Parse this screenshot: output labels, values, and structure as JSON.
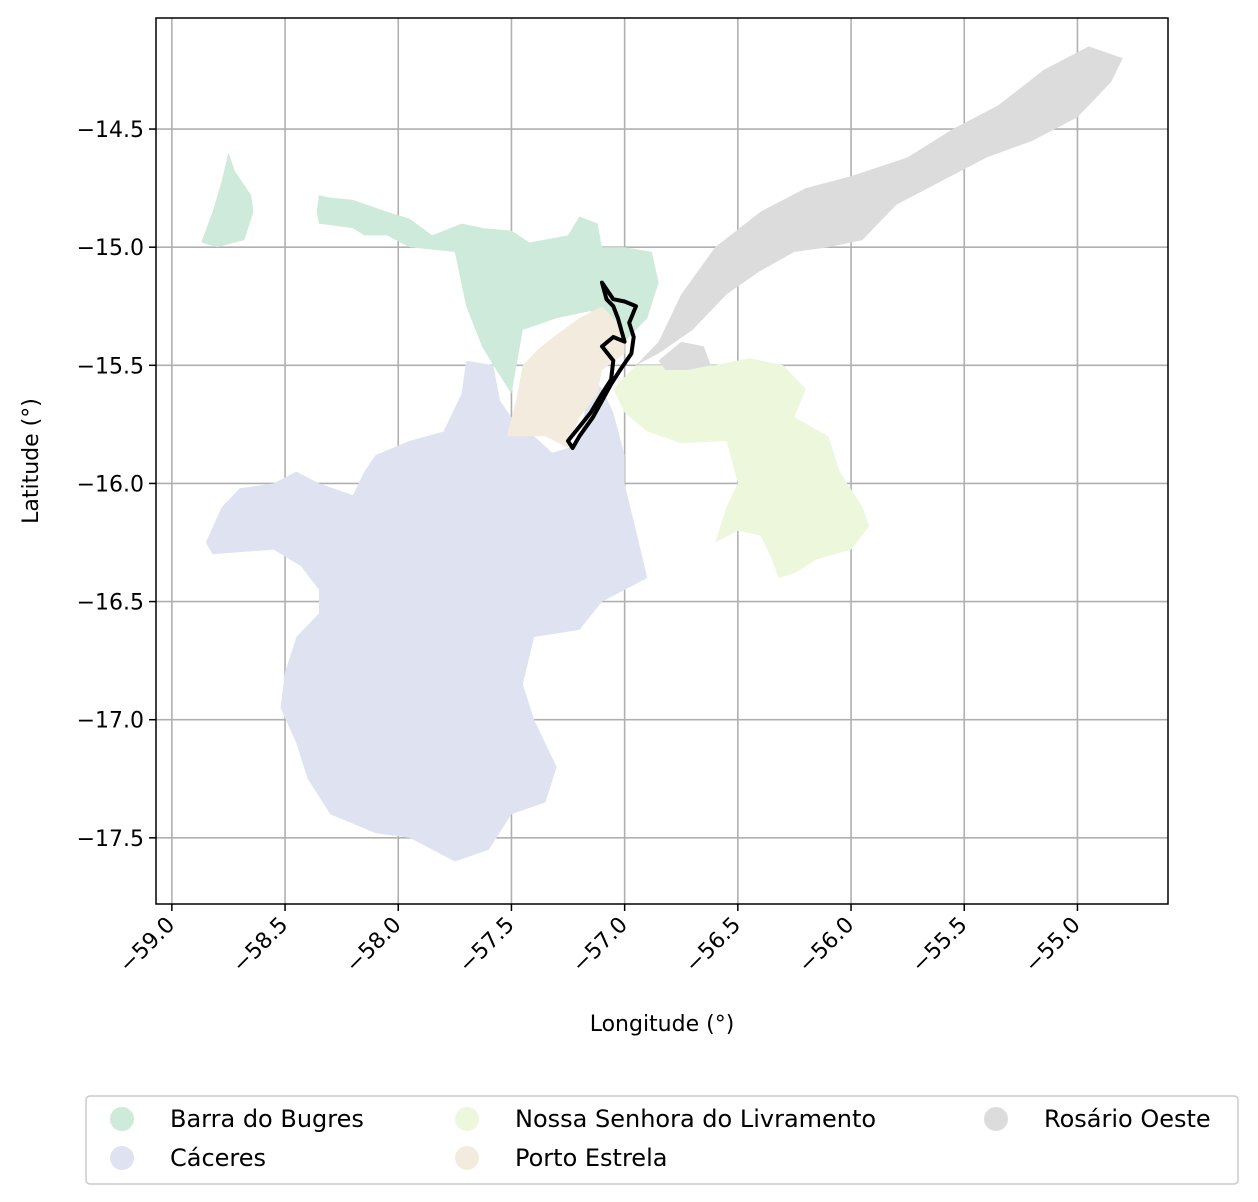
{
  "map": {
    "xlabel": "Longitude (°)",
    "ylabel": "Latitude (°)",
    "xlim": [
      -59.07,
      -54.6
    ],
    "ylim": [
      -17.78,
      -14.03
    ],
    "x_ticks": [
      -59.0,
      -58.5,
      -58.0,
      -57.5,
      -57.0,
      -56.5,
      -56.0,
      -55.5,
      -55.0
    ],
    "x_tick_labels": [
      "−59.0",
      "−58.5",
      "−58.0",
      "−57.5",
      "−57.0",
      "−56.5",
      "−56.0",
      "−55.5",
      "−55.0"
    ],
    "y_ticks": [
      -14.5,
      -15.0,
      -15.5,
      -16.0,
      -16.5,
      -17.0,
      -17.5
    ],
    "y_tick_labels": [
      "−14.5",
      "−15.0",
      "−15.5",
      "−16.0",
      "−16.5",
      "−17.0",
      "−17.5"
    ],
    "grid": true,
    "legend_placement": "bottom, outside plot, 3 columns",
    "legend": [
      {
        "name": "Barra do Bugres",
        "color": "#cdeadb"
      },
      {
        "name": "Cáceres",
        "color": "#dfe3f1"
      },
      {
        "name": "Nossa Senhora do Livramento",
        "color": "#edf7dc"
      },
      {
        "name": "Porto Estrela",
        "color": "#f3ebdd"
      },
      {
        "name": "Rosário Oeste",
        "color": "#dcdcdc"
      }
    ],
    "regions": [
      {
        "name": "Barra do Bugres",
        "color": "#cdeadb",
        "coords": [
          [
            -58.35,
            -14.78
          ],
          [
            -58.3,
            -14.79
          ],
          [
            -58.2,
            -14.8
          ],
          [
            -58.05,
            -14.85
          ],
          [
            -57.95,
            -14.88
          ],
          [
            -57.85,
            -14.95
          ],
          [
            -57.72,
            -14.9
          ],
          [
            -57.62,
            -14.92
          ],
          [
            -57.5,
            -14.93
          ],
          [
            -57.42,
            -14.98
          ],
          [
            -57.25,
            -14.95
          ],
          [
            -57.2,
            -14.87
          ],
          [
            -57.12,
            -14.9
          ],
          [
            -57.1,
            -15.0
          ],
          [
            -57.0,
            -15.0
          ],
          [
            -56.88,
            -15.02
          ],
          [
            -56.85,
            -15.15
          ],
          [
            -56.9,
            -15.3
          ],
          [
            -57.0,
            -15.4
          ],
          [
            -57.15,
            -15.27
          ],
          [
            -57.3,
            -15.3
          ],
          [
            -57.45,
            -15.35
          ],
          [
            -57.5,
            -15.62
          ],
          [
            -57.58,
            -15.5
          ],
          [
            -57.63,
            -15.42
          ],
          [
            -57.7,
            -15.25
          ],
          [
            -57.75,
            -15.02
          ],
          [
            -57.95,
            -15.0
          ],
          [
            -58.05,
            -14.95
          ],
          [
            -58.15,
            -14.95
          ],
          [
            -58.2,
            -14.92
          ],
          [
            -58.35,
            -14.9
          ],
          [
            -58.36,
            -14.85
          ]
        ]
      },
      {
        "name": "Barra do Bugres",
        "color": "#cdeadb",
        "coords": [
          [
            -58.87,
            -14.98
          ],
          [
            -58.82,
            -14.85
          ],
          [
            -58.78,
            -14.72
          ],
          [
            -58.75,
            -14.6
          ],
          [
            -58.72,
            -14.68
          ],
          [
            -58.65,
            -14.78
          ],
          [
            -58.64,
            -14.85
          ],
          [
            -58.68,
            -14.97
          ],
          [
            -58.8,
            -15.0
          ]
        ]
      },
      {
        "name": "Cáceres",
        "color": "#dfe3f1",
        "coords": [
          [
            -57.15,
            -15.55
          ],
          [
            -57.2,
            -15.82
          ],
          [
            -57.25,
            -15.85
          ],
          [
            -57.32,
            -15.87
          ],
          [
            -57.4,
            -15.8
          ],
          [
            -57.5,
            -15.72
          ],
          [
            -57.55,
            -15.65
          ],
          [
            -57.58,
            -15.5
          ],
          [
            -57.7,
            -15.48
          ],
          [
            -57.72,
            -15.62
          ],
          [
            -57.8,
            -15.78
          ],
          [
            -57.95,
            -15.82
          ],
          [
            -58.1,
            -15.88
          ],
          [
            -58.15,
            -15.95
          ],
          [
            -58.2,
            -16.05
          ],
          [
            -58.35,
            -16.0
          ],
          [
            -58.45,
            -15.95
          ],
          [
            -58.55,
            -16.0
          ],
          [
            -58.7,
            -16.02
          ],
          [
            -58.78,
            -16.1
          ],
          [
            -58.85,
            -16.25
          ],
          [
            -58.82,
            -16.3
          ],
          [
            -58.55,
            -16.28
          ],
          [
            -58.43,
            -16.35
          ],
          [
            -58.35,
            -16.45
          ],
          [
            -58.35,
            -16.55
          ],
          [
            -58.45,
            -16.65
          ],
          [
            -58.5,
            -16.8
          ],
          [
            -58.52,
            -16.95
          ],
          [
            -58.45,
            -17.1
          ],
          [
            -58.4,
            -17.25
          ],
          [
            -58.3,
            -17.4
          ],
          [
            -58.1,
            -17.48
          ],
          [
            -57.95,
            -17.5
          ],
          [
            -57.75,
            -17.6
          ],
          [
            -57.6,
            -17.55
          ],
          [
            -57.5,
            -17.4
          ],
          [
            -57.35,
            -17.35
          ],
          [
            -57.3,
            -17.2
          ],
          [
            -57.4,
            -17.0
          ],
          [
            -57.45,
            -16.85
          ],
          [
            -57.4,
            -16.65
          ],
          [
            -57.2,
            -16.62
          ],
          [
            -57.1,
            -16.5
          ],
          [
            -56.9,
            -16.4
          ],
          [
            -56.95,
            -16.2
          ],
          [
            -57.0,
            -16.0
          ],
          [
            -57.0,
            -15.88
          ],
          [
            -57.05,
            -15.7
          ],
          [
            -57.1,
            -15.6
          ]
        ]
      },
      {
        "name": "Nossa Senhora do Livramento",
        "color": "#edf7dc",
        "coords": [
          [
            -57.05,
            -15.6
          ],
          [
            -56.95,
            -15.5
          ],
          [
            -56.6,
            -15.5
          ],
          [
            -56.45,
            -15.47
          ],
          [
            -56.3,
            -15.5
          ],
          [
            -56.2,
            -15.6
          ],
          [
            -56.25,
            -15.72
          ],
          [
            -56.1,
            -15.8
          ],
          [
            -56.05,
            -15.95
          ],
          [
            -55.95,
            -16.1
          ],
          [
            -55.92,
            -16.18
          ],
          [
            -56.0,
            -16.28
          ],
          [
            -56.15,
            -16.32
          ],
          [
            -56.25,
            -16.38
          ],
          [
            -56.32,
            -16.4
          ],
          [
            -56.35,
            -16.32
          ],
          [
            -56.4,
            -16.22
          ],
          [
            -56.5,
            -16.2
          ],
          [
            -56.6,
            -16.25
          ],
          [
            -56.55,
            -16.1
          ],
          [
            -56.5,
            -16.0
          ],
          [
            -56.55,
            -15.82
          ],
          [
            -56.75,
            -15.83
          ],
          [
            -56.9,
            -15.78
          ],
          [
            -57.0,
            -15.7
          ]
        ]
      },
      {
        "name": "Porto Estrela",
        "color": "#f3ebdd",
        "coords": [
          [
            -57.3,
            -15.37
          ],
          [
            -57.2,
            -15.3
          ],
          [
            -57.1,
            -15.25
          ],
          [
            -57.0,
            -15.35
          ],
          [
            -57.0,
            -15.45
          ],
          [
            -57.1,
            -15.52
          ],
          [
            -57.12,
            -15.62
          ],
          [
            -57.2,
            -15.72
          ],
          [
            -57.25,
            -15.85
          ],
          [
            -57.35,
            -15.8
          ],
          [
            -57.45,
            -15.8
          ],
          [
            -57.52,
            -15.8
          ],
          [
            -57.48,
            -15.65
          ],
          [
            -57.45,
            -15.5
          ],
          [
            -57.38,
            -15.43
          ]
        ]
      },
      {
        "name": "Rosário Oeste",
        "color": "#dcdcdc",
        "coords": [
          [
            -57.0,
            -15.55
          ],
          [
            -56.85,
            -15.4
          ],
          [
            -56.75,
            -15.2
          ],
          [
            -56.6,
            -15.0
          ],
          [
            -56.4,
            -14.85
          ],
          [
            -56.2,
            -14.75
          ],
          [
            -56.0,
            -14.7
          ],
          [
            -55.75,
            -14.62
          ],
          [
            -55.55,
            -14.5
          ],
          [
            -55.35,
            -14.4
          ],
          [
            -55.15,
            -14.25
          ],
          [
            -54.95,
            -14.15
          ],
          [
            -54.8,
            -14.2
          ],
          [
            -54.85,
            -14.3
          ],
          [
            -55.0,
            -14.45
          ],
          [
            -55.2,
            -14.55
          ],
          [
            -55.4,
            -14.62
          ],
          [
            -55.6,
            -14.72
          ],
          [
            -55.8,
            -14.82
          ],
          [
            -55.95,
            -14.97
          ],
          [
            -56.1,
            -15.0
          ],
          [
            -56.25,
            -15.02
          ],
          [
            -56.4,
            -15.1
          ],
          [
            -56.55,
            -15.2
          ],
          [
            -56.7,
            -15.35
          ],
          [
            -56.85,
            -15.45
          ],
          [
            -56.95,
            -15.5
          ]
        ]
      },
      {
        "name": "Rosário Oeste",
        "color": "#dcdcdc",
        "coords": [
          [
            -56.85,
            -15.48
          ],
          [
            -56.75,
            -15.4
          ],
          [
            -56.65,
            -15.42
          ],
          [
            -56.62,
            -15.5
          ],
          [
            -56.72,
            -15.52
          ],
          [
            -56.82,
            -15.52
          ]
        ]
      }
    ],
    "outline": {
      "color": "#000000",
      "coords": [
        [
          -57.1,
          -15.15
        ],
        [
          -57.05,
          -15.22
        ],
        [
          -57.0,
          -15.23
        ],
        [
          -56.95,
          -15.25
        ],
        [
          -56.98,
          -15.32
        ],
        [
          -56.96,
          -15.38
        ],
        [
          -56.97,
          -15.45
        ],
        [
          -57.02,
          -15.52
        ],
        [
          -57.06,
          -15.58
        ],
        [
          -57.1,
          -15.65
        ],
        [
          -57.14,
          -15.72
        ],
        [
          -57.2,
          -15.8
        ],
        [
          -57.23,
          -15.85
        ],
        [
          -57.25,
          -15.82
        ],
        [
          -57.2,
          -15.76
        ],
        [
          -57.15,
          -15.7
        ],
        [
          -57.1,
          -15.62
        ],
        [
          -57.06,
          -15.56
        ],
        [
          -57.05,
          -15.48
        ],
        [
          -57.1,
          -15.42
        ],
        [
          -57.05,
          -15.38
        ],
        [
          -57.0,
          -15.4
        ],
        [
          -57.03,
          -15.3
        ],
        [
          -57.05,
          -15.25
        ],
        [
          -57.08,
          -15.22
        ]
      ]
    }
  }
}
